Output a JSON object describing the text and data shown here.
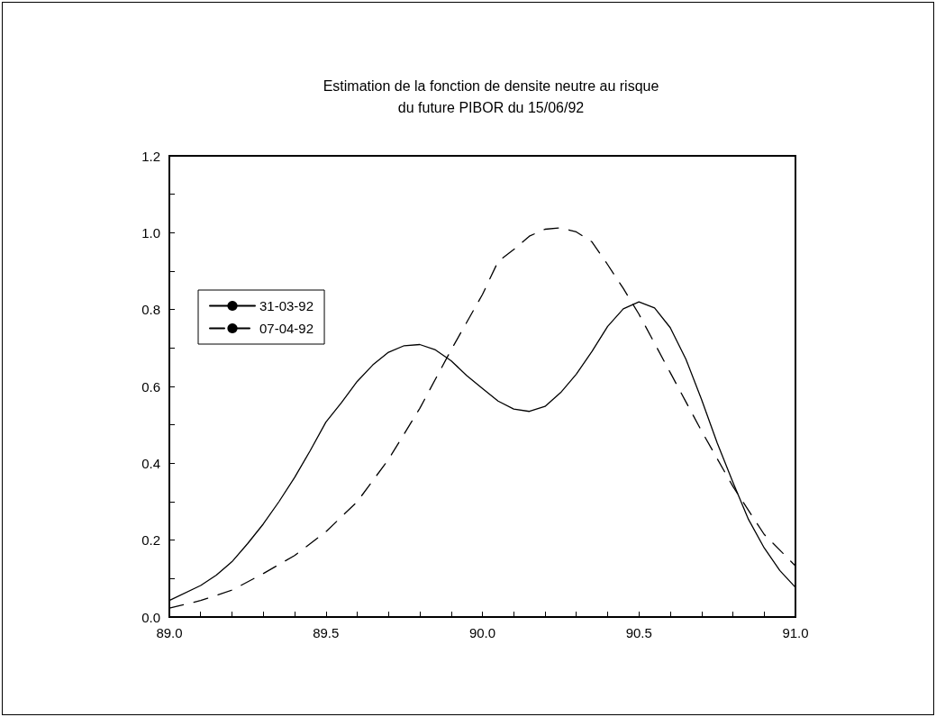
{
  "chart_data": {
    "type": "line",
    "title": "Estimation de la fonction de densite neutre au risque\ndu future PIBOR du 15/06/92",
    "xlim": [
      89,
      91
    ],
    "xticks": [
      {
        "value": 89,
        "label": "89.0"
      },
      {
        "value": 89.1,
        "label": null
      },
      {
        "value": 89.2,
        "label": null
      },
      {
        "value": 89.3,
        "label": null
      },
      {
        "value": 89.4,
        "label": null
      },
      {
        "value": 89.5,
        "label": "89.5"
      },
      {
        "value": 89.6,
        "label": null
      },
      {
        "value": 89.7,
        "label": null
      },
      {
        "value": 89.8,
        "label": null
      },
      {
        "value": 89.9,
        "label": null
      },
      {
        "value": 90.0,
        "label": "90.0"
      },
      {
        "value": 90.1,
        "label": null
      },
      {
        "value": 90.2,
        "label": null
      },
      {
        "value": 90.3,
        "label": null
      },
      {
        "value": 90.4,
        "label": null
      },
      {
        "value": 90.5,
        "label": "90.5"
      },
      {
        "value": 90.6,
        "label": null
      },
      {
        "value": 90.7,
        "label": null
      },
      {
        "value": 90.8,
        "label": null
      },
      {
        "value": 90.9,
        "label": null
      },
      {
        "value": 91.0,
        "label": "91.0"
      }
    ],
    "ylim": [
      0,
      1.2
    ],
    "yticks": [
      {
        "value": 0,
        "label": "0.0"
      },
      {
        "value": 0.1,
        "label": null
      },
      0.2,
      {
        "value": 0.3,
        "label": null
      },
      0.4,
      {
        "value": 0.5,
        "label": null
      },
      0.6,
      {
        "value": 0.7,
        "label": null
      },
      0.8,
      {
        "value": 0.9,
        "label": null
      },
      {
        "value": 1.0,
        "label": "1.0"
      },
      {
        "value": 1.1,
        "label": null
      },
      1.2
    ],
    "grid": false,
    "legend": "left",
    "marker": "none",
    "series": [
      {
        "name": "31-03-92",
        "color": "#000000",
        "line_style": "solid",
        "x": [
          89.0,
          89.1,
          89.15,
          89.2,
          89.25,
          89.3,
          89.35,
          89.4,
          89.45,
          89.5,
          89.55,
          89.6,
          89.65,
          89.7,
          89.75,
          89.8,
          89.85,
          89.9,
          89.95,
          90.0,
          90.05,
          90.1,
          90.15,
          90.2,
          90.25,
          90.3,
          90.35,
          90.4,
          90.45,
          90.5,
          90.55,
          90.6,
          90.65,
          90.7,
          90.75,
          90.8,
          90.85,
          90.9,
          90.95,
          91.0
        ],
        "values": [
          0.043,
          0.082,
          0.109,
          0.144,
          0.191,
          0.242,
          0.3,
          0.363,
          0.433,
          0.507,
          0.558,
          0.613,
          0.656,
          0.689,
          0.706,
          0.709,
          0.695,
          0.667,
          0.628,
          0.595,
          0.562,
          0.541,
          0.535,
          0.548,
          0.584,
          0.632,
          0.691,
          0.756,
          0.802,
          0.82,
          0.804,
          0.753,
          0.671,
          0.566,
          0.453,
          0.351,
          0.254,
          0.18,
          0.121,
          0.077
        ]
      },
      {
        "name": "07-04-92",
        "color": "#000000",
        "line_style": "dashed",
        "x": [
          89.0,
          89.1,
          89.2,
          89.3,
          89.4,
          89.5,
          89.6,
          89.7,
          89.8,
          89.9,
          90.0,
          90.05,
          90.1,
          90.15,
          90.2,
          90.25,
          90.3,
          90.35,
          90.4,
          90.45,
          90.5,
          90.6,
          90.7,
          90.8,
          90.9,
          91.0
        ],
        "values": [
          0.023,
          0.043,
          0.07,
          0.113,
          0.16,
          0.222,
          0.3,
          0.41,
          0.543,
          0.695,
          0.839,
          0.925,
          0.956,
          0.991,
          1.009,
          1.013,
          1.002,
          0.976,
          0.917,
          0.855,
          0.788,
          0.636,
          0.484,
          0.34,
          0.215,
          0.133
        ]
      }
    ]
  }
}
